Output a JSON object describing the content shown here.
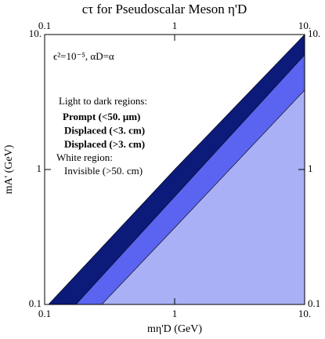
{
  "chart_data": {
    "type": "area",
    "title": "cτ for Pseudoscalar Meson η'D",
    "x_label": "mη'D (GeV)",
    "y_label": "mA' (GeV)",
    "log_x": true,
    "log_y": true,
    "xlim": [
      0.1,
      10
    ],
    "ylim": [
      0.1,
      10
    ],
    "xticks": [
      0.1,
      1,
      {
        "value": 10,
        "label": "10."
      }
    ],
    "yticks": [
      0.1,
      1,
      {
        "value": 10,
        "label": "10."
      }
    ],
    "annotations": [
      "ϵ²=10⁻⁵, αD=α",
      "Light to dark regions:",
      "White region:",
      "Invisible (>50. cm)"
    ],
    "series": [
      {
        "name": "Displaced (>3. cm)",
        "color": "#0c1a7a",
        "x": [
          0.107,
          1,
          10
        ],
        "values": [
          0.1,
          1,
          10
        ]
      },
      {
        "name": "Displaced (<3. cm)",
        "color": "#5a64f0",
        "x": [
          0.174,
          1,
          10
        ],
        "values": [
          0.1,
          0.63,
          7.06
        ]
      },
      {
        "name": "Prompt (<50. μm)",
        "color": "#aab0f5",
        "x": [
          0.275,
          1,
          10
        ],
        "values": [
          0.1,
          0.37,
          3.87
        ]
      }
    ]
  }
}
